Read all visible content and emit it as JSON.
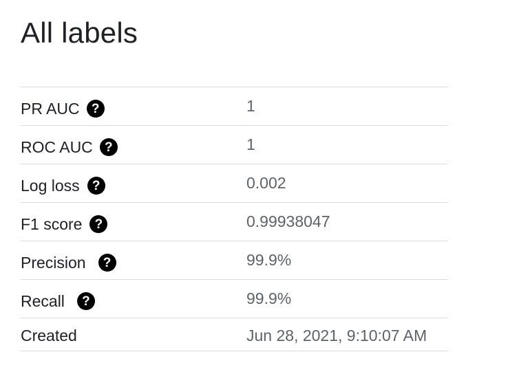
{
  "title": "All labels",
  "metrics": [
    {
      "label": "PR AUC",
      "value": "1",
      "icon": "help-icon",
      "icon_glyph": "?"
    },
    {
      "label": "ROC AUC",
      "value": "1",
      "icon": "help-icon",
      "icon_glyph": "?"
    },
    {
      "label": "Log loss",
      "value": "0.002",
      "icon": "help-icon",
      "icon_glyph": "?"
    },
    {
      "label": "F1 score",
      "value": "0.99938047",
      "icon": "help-icon",
      "icon_glyph": "?"
    },
    {
      "label": "Precision",
      "value": "99.9%",
      "icon": "help-icon",
      "icon_glyph": "?"
    },
    {
      "label": "Recall",
      "value": "99.9%",
      "icon": "help-icon",
      "icon_glyph": "?"
    }
  ],
  "created": {
    "label": "Created",
    "value": "Jun 28, 2021, 9:10:07 AM"
  },
  "colors": {
    "label_text": "#202124",
    "value_text": "#5f6368",
    "divider": "#dadce0",
    "icon_bg": "#000000"
  }
}
